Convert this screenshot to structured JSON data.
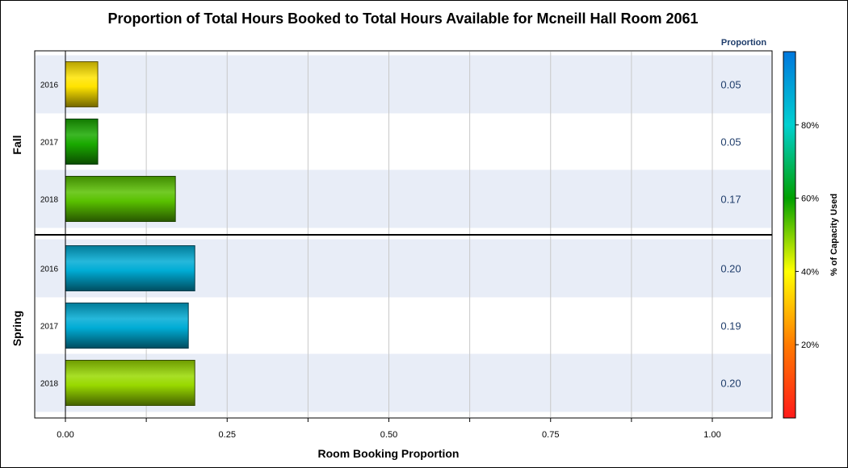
{
  "chart_data": {
    "type": "bar",
    "orientation": "horizontal",
    "title": "Proportion of Total Hours Booked to Total Hours Available for Mcneill Hall Room 2061",
    "xlabel": "Room Booking Proportion",
    "xlim": [
      0,
      1.0
    ],
    "xticks": [
      "0.00",
      "0.25",
      "0.50",
      "0.75",
      "1.00"
    ],
    "value_column_header": "Proportion",
    "grid": true,
    "groups": [
      {
        "name": "Fall",
        "rows": [
          {
            "category": "2016",
            "value": 0.05,
            "label": "0.05",
            "pct_capacity": 36
          },
          {
            "category": "2017",
            "value": 0.05,
            "label": "0.05",
            "pct_capacity": 58
          },
          {
            "category": "2018",
            "value": 0.17,
            "label": "0.17",
            "pct_capacity": 53
          }
        ]
      },
      {
        "name": "Spring",
        "rows": [
          {
            "category": "2016",
            "value": 0.2,
            "label": "0.20",
            "pct_capacity": 88
          },
          {
            "category": "2017",
            "value": 0.19,
            "label": "0.19",
            "pct_capacity": 88
          },
          {
            "category": "2018",
            "value": 0.2,
            "label": "0.20",
            "pct_capacity": 48
          }
        ]
      }
    ],
    "colorbar": {
      "title": "% of Capacity Used",
      "ticks": [
        "20%",
        "40%",
        "60%",
        "80%"
      ],
      "tick_values": [
        20,
        40,
        60,
        80
      ],
      "range": [
        0,
        100
      ],
      "colors": [
        "#ff1a1a",
        "#ff7a00",
        "#ffff00",
        "#00a000",
        "#00d0d0",
        "#0077dd"
      ]
    }
  }
}
